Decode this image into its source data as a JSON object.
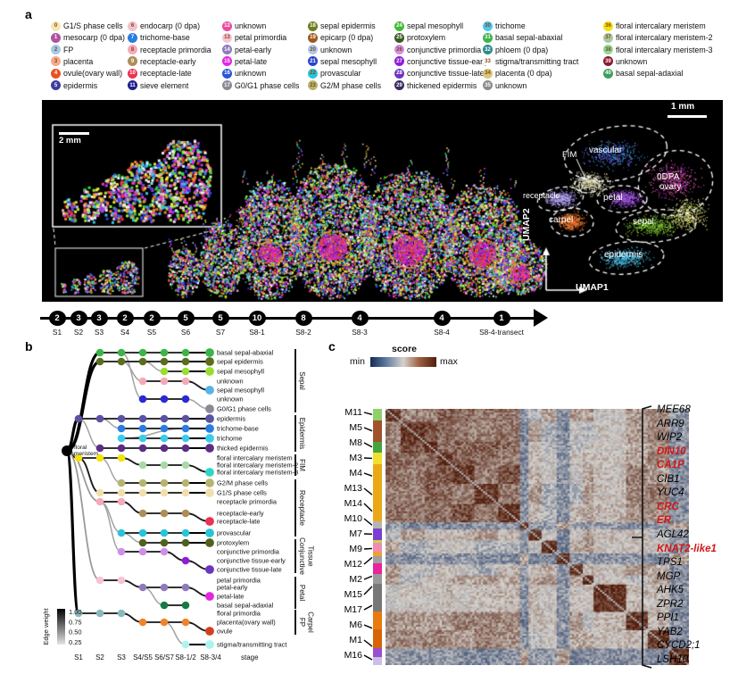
{
  "figure": {
    "a": "a",
    "b": "b",
    "c": "c"
  },
  "legend": {
    "columns": [
      [
        {
          "id": "0",
          "label": "G1/S phase cells",
          "color": "#f2e6b4"
        },
        {
          "id": "1",
          "label": "mesocarp (0 dpa)",
          "color": "#b052a0"
        },
        {
          "id": "2",
          "label": "FP",
          "color": "#a3cbe8"
        },
        {
          "id": "3",
          "label": "placenta",
          "color": "#f4a98c"
        },
        {
          "id": "4",
          "label": "ovule(ovary wall)",
          "color": "#e85324"
        },
        {
          "id": "5",
          "label": "epidermis",
          "color": "#3c3c9e"
        }
      ],
      [
        {
          "id": "6",
          "label": "endocarp (0 dpa)",
          "color": "#efc3cd"
        },
        {
          "id": "7",
          "label": "trichome-base",
          "color": "#2a7de1"
        },
        {
          "id": "8",
          "label": "receptacle primordia",
          "color": "#f6aab9"
        },
        {
          "id": "9",
          "label": "receptacle-early",
          "color": "#b08d57"
        },
        {
          "id": "10",
          "label": "receptacle-late",
          "color": "#ea3352"
        },
        {
          "id": "11",
          "label": "sieve element",
          "color": "#20208c"
        }
      ],
      [
        {
          "id": "12",
          "label": "unknown",
          "color": "#ea4b9e"
        },
        {
          "id": "13",
          "label": "petal primordia",
          "color": "#f6c3d8"
        },
        {
          "id": "14",
          "label": "petal-early",
          "color": "#8f7bbc"
        },
        {
          "id": "15",
          "label": "petal-late",
          "color": "#e226e2"
        },
        {
          "id": "16",
          "label": "unknown",
          "color": "#2a55d8"
        },
        {
          "id": "17",
          "label": "G0/G1 phase cells",
          "color": "#8a8a94"
        }
      ],
      [
        {
          "id": "18",
          "label": "sepal epidermis",
          "color": "#6e7d20"
        },
        {
          "id": "19",
          "label": "epicarp (0 dpa)",
          "color": "#9e5a20"
        },
        {
          "id": "20",
          "label": "unknown",
          "color": "#a9c9ef"
        },
        {
          "id": "21",
          "label": "sepal mesophyll",
          "color": "#2a44cc"
        },
        {
          "id": "22",
          "label": "provascular",
          "color": "#28c4da"
        },
        {
          "id": "23",
          "label": "G2/M phase cells",
          "color": "#b5b56e"
        }
      ],
      [
        {
          "id": "24",
          "label": "sepal mesophyll",
          "color": "#44bb38"
        },
        {
          "id": "25",
          "label": "protoxylem",
          "color": "#3e5922"
        },
        {
          "id": "26",
          "label": "conjunctive primordia",
          "color": "#cf8fe8"
        },
        {
          "id": "27",
          "label": "conjunctive tissue-early",
          "color": "#8d1ed6"
        },
        {
          "id": "28",
          "label": "conjunctive tissue-late",
          "color": "#6d35c2"
        },
        {
          "id": "29",
          "label": "thickened epidermis",
          "color": "#3a2a60"
        }
      ],
      [
        {
          "id": "30",
          "label": "trichome",
          "color": "#4cc8f0"
        },
        {
          "id": "31",
          "label": "basal sepal-abaxial",
          "color": "#3cb44a"
        },
        {
          "id": "32",
          "label": "phloem (0 dpa)",
          "color": "#2a8c8c"
        },
        {
          "id": "33",
          "label": "stigma/transmitting tract",
          "color": "#ffffff"
        },
        {
          "id": "34",
          "label": "placenta (0 dpa)",
          "color": "#d8c878"
        },
        {
          "id": "35",
          "label": "unknown",
          "color": "#8c8c8c"
        }
      ],
      [
        {
          "id": "36",
          "label": "floral intercalary meristem",
          "color": "#f2e20e"
        },
        {
          "id": "37",
          "label": "floral intercalary meristem-2",
          "color": "#a9c9a0"
        },
        {
          "id": "38",
          "label": "floral intercalary meristem-3",
          "color": "#90d8a0"
        },
        {
          "id": "39",
          "label": "unknown",
          "color": "#8b1a2e"
        },
        {
          "id": "40",
          "label": "basal sepal-adaxial",
          "color": "#3f9e5f"
        }
      ]
    ]
  },
  "panel_a": {
    "inset_scale": "2 mm",
    "scale": "1 mm",
    "umap": {
      "x": "UMAP1",
      "y": "UMAP2",
      "labels": [
        "FIM",
        "vascular",
        "receptacle",
        "petal",
        "carpel",
        "0DPA",
        "ovary",
        "sepal",
        "epidermis"
      ]
    }
  },
  "stage_strip": {
    "stages": [
      {
        "n": "2",
        "label": "S1"
      },
      {
        "n": "3",
        "label": "S2"
      },
      {
        "n": "3",
        "label": "S3"
      },
      {
        "n": "2",
        "label": "S4"
      },
      {
        "n": "2",
        "label": "S5"
      },
      {
        "n": "5",
        "label": "S6"
      },
      {
        "n": "5",
        "label": "S7"
      },
      {
        "n": "10",
        "label": "S8-1"
      },
      {
        "n": "8",
        "label": "S8-2"
      },
      {
        "n": "4",
        "label": "S8-3"
      },
      {
        "n": "4",
        "label": "S8-4"
      },
      {
        "n": "1",
        "label": "S8-4-transect"
      }
    ]
  },
  "panel_b": {
    "root": "floral meristem",
    "axis": [
      "S1",
      "S2",
      "S3",
      "S4/S5",
      "S6/S7",
      "S8-1/2",
      "S8-3/4"
    ],
    "axis_title": "stage",
    "edge_weight": {
      "label": "Edge weight",
      "ticks": [
        "1.00",
        "0.75",
        "0.50",
        "0.25"
      ]
    },
    "rows": [
      {
        "label": "basal sepal-abaxial",
        "color": "#3cb44a",
        "cols": [
          2,
          3,
          4,
          5,
          6
        ],
        "term": true,
        "parent": -1,
        "link": "root"
      },
      {
        "label": "sepal epidermis",
        "color": "#5a6e1e",
        "cols": [
          2,
          3,
          4,
          5,
          6
        ],
        "term": true,
        "parent": -1,
        "link": "root"
      },
      {
        "label": "sepal mesophyll",
        "color": "#9add32",
        "cols": [
          5,
          6
        ],
        "term": true,
        "parent": 1,
        "link": "gray"
      },
      {
        "label": "unknown",
        "color": "#f4a9b8",
        "cols": [
          4,
          5,
          6
        ],
        "term": false,
        "parent": 1,
        "link": "gray"
      },
      {
        "label": "sepal mesophyll",
        "color": "#56b4e9",
        "cols": [],
        "term": true,
        "parent": 3,
        "link": "dark"
      },
      {
        "label": "unknown",
        "color": "#2a2ad4",
        "cols": [
          4,
          5,
          6
        ],
        "term": false,
        "parent": 0,
        "link": "gray"
      },
      {
        "label": "G0/G1 phase cells",
        "color": "#8a8a94",
        "cols": [],
        "term": true,
        "parent": 5,
        "link": "gray"
      },
      {
        "label": "epidermis",
        "color": "#5a52a3",
        "cols": [
          1,
          2,
          3,
          4,
          5,
          6
        ],
        "term": true,
        "parent": -1,
        "link": "root"
      },
      {
        "label": "trichome-base",
        "color": "#2a7de1",
        "cols": [
          3,
          4,
          5,
          6
        ],
        "term": true,
        "parent": 7,
        "link": "gray"
      },
      {
        "label": "trichome",
        "color": "#38cdea",
        "cols": [
          3,
          4,
          5,
          6
        ],
        "term": true,
        "parent": 8,
        "link": "gray"
      },
      {
        "label": "thicked epidermis",
        "color": "#5c2d85",
        "cols": [
          2,
          3,
          4,
          5,
          6
        ],
        "term": true,
        "parent": 7,
        "link": "gray"
      },
      {
        "label": "floral intercalary meristem",
        "color": "#f2e20e",
        "cols": [
          1,
          2,
          3
        ],
        "term": false,
        "parent": -1,
        "link": "root"
      },
      {
        "label": "floral intercalary meristem-2",
        "color": "#a9d9a9",
        "cols": [
          4,
          5,
          6
        ],
        "term": false,
        "parent": 11,
        "link": "dark"
      },
      {
        "label": "floral intercalary meristem-3",
        "color": "#2fd6c8",
        "cols": [],
        "term": true,
        "parent": 12,
        "link": "dark"
      },
      {
        "label": "G2/M phase cells",
        "color": "#b5b56e",
        "cols": [
          3,
          4,
          5,
          6
        ],
        "term": true,
        "parent": 11,
        "link": "gray"
      },
      {
        "label": "G1/S phase cells",
        "color": "#f2deac",
        "cols": [
          2,
          3,
          4,
          5,
          6
        ],
        "term": true,
        "parent": 11,
        "link": "dark"
      },
      {
        "label": "receptacle primordia",
        "color": "#f6aab9",
        "cols": [
          2,
          3
        ],
        "term": false,
        "parent": -1,
        "link": "gray"
      },
      {
        "label": "receptacle-early",
        "color": "#b08d57",
        "cols": [
          4,
          5,
          6
        ],
        "term": false,
        "parent": 16,
        "link": "dark"
      },
      {
        "label": "receptacle-late",
        "color": "#ea3352",
        "cols": [],
        "term": true,
        "parent": 17,
        "link": "dark"
      },
      {
        "label": "provascular",
        "color": "#28c4da",
        "cols": [
          3,
          4,
          5,
          6
        ],
        "term": true,
        "parent": 16,
        "link": "gray"
      },
      {
        "label": "protoxylem",
        "color": "#50611e",
        "cols": [
          4,
          5,
          6
        ],
        "term": true,
        "parent": 19,
        "link": "gray"
      },
      {
        "label": "conjunctive primordia",
        "color": "#cf8fe8",
        "cols": [
          3,
          4,
          5
        ],
        "term": false,
        "parent": 16,
        "link": "gray"
      },
      {
        "label": "conjunctive tissue-early",
        "color": "#8d1ed6",
        "cols": [
          6
        ],
        "term": false,
        "parent": 21,
        "link": "dark"
      },
      {
        "label": "conjunctive tissue-late",
        "color": "#6d35c2",
        "cols": [],
        "term": true,
        "parent": 22,
        "link": "dark"
      },
      {
        "label": "petal primordia",
        "color": "#f6c3d8",
        "cols": [
          2,
          3
        ],
        "term": false,
        "parent": -1,
        "link": "gray"
      },
      {
        "label": "petal-early",
        "color": "#8f7bbc",
        "cols": [
          4,
          5,
          6
        ],
        "term": false,
        "parent": 24,
        "link": "dark"
      },
      {
        "label": "petal-late",
        "color": "#e226e2",
        "cols": [],
        "term": true,
        "parent": 25,
        "link": "dark"
      },
      {
        "label": "basal sepal-adaxial",
        "color": "#157a46",
        "cols": [
          5,
          6
        ],
        "term": false,
        "parent": 25,
        "link": "gray"
      },
      {
        "label": "floral primordia",
        "color": "#8cb8bd",
        "cols": [
          1,
          2,
          3
        ],
        "term": false,
        "parent": -1,
        "link": "root"
      },
      {
        "label": "placenta(ovary wall)",
        "color": "#f08428",
        "cols": [
          4,
          5,
          6
        ],
        "term": false,
        "parent": 28,
        "link": "dark"
      },
      {
        "label": "ovule",
        "color": "#d2411e",
        "cols": [],
        "term": true,
        "parent": 29,
        "link": "dark"
      },
      {
        "label": "stigma/transmitting tract",
        "color": "#aef2ef",
        "cols": [
          6
        ],
        "term": true,
        "parent": 29,
        "link": "gray"
      }
    ],
    "groups": [
      {
        "label": [
          "Sepal"
        ],
        "from": 0,
        "to": 6
      },
      {
        "label": [
          "Epidermis"
        ],
        "from": 7,
        "to": 10
      },
      {
        "label": [
          "FIM"
        ],
        "from": 11,
        "to": 13
      },
      {
        "label": [
          "Receptacle"
        ],
        "from": 14,
        "to": 19
      },
      {
        "label": [
          "Conjunctive",
          "Tissue"
        ],
        "from": 20,
        "to": 23
      },
      {
        "label": [
          "Petal"
        ],
        "from": 24,
        "to": 27
      },
      {
        "label": [
          "FP",
          "Carpel"
        ],
        "from": 28,
        "to": 30
      }
    ]
  },
  "panel_c": {
    "score": {
      "title": "score",
      "min": "min",
      "max": "max"
    },
    "modules": [
      "M11",
      "M5",
      "M8",
      "M3",
      "M4",
      "M13",
      "M14",
      "M10",
      "M7",
      "M9",
      "M12",
      "M2",
      "M15",
      "M17",
      "M6",
      "M1",
      "M16"
    ],
    "strip_colors": [
      "#8fd06a",
      "#a0522d",
      "#46a43c",
      "#f0e030",
      "#eaa817",
      "#b4b4b4",
      "#7a3fd1",
      "#cad545",
      "#f08cb4",
      "#f0a030",
      "#a0a0a0",
      "#e8239c",
      "#999999",
      "#787878",
      "#e87a10",
      "#d86408",
      "#9a4fd0",
      "#c9bfe8"
    ],
    "genes": [
      {
        "name": "MEE68",
        "red": false
      },
      {
        "name": "ARR9",
        "red": false
      },
      {
        "name": "WIP2",
        "red": false
      },
      {
        "name": "DIN10",
        "red": true
      },
      {
        "name": "CA1P",
        "red": true
      },
      {
        "name": "CIB1",
        "red": false
      },
      {
        "name": "YUC4",
        "red": false
      },
      {
        "name": "CRC",
        "red": true
      },
      {
        "name": "ER",
        "red": true
      },
      {
        "name": "AGL42",
        "red": false
      },
      {
        "name": "KNAT2-like1",
        "red": true
      },
      {
        "name": "TPS1",
        "red": false
      },
      {
        "name": "MGP",
        "red": false
      },
      {
        "name": "AHK5",
        "red": false
      },
      {
        "name": "ZPR2",
        "red": false
      },
      {
        "name": "PPI1",
        "red": false
      },
      {
        "name": "YAB2",
        "red": false
      },
      {
        "name": "CYCD2;1",
        "red": false
      },
      {
        "name": "LSH10",
        "red": false
      }
    ]
  }
}
